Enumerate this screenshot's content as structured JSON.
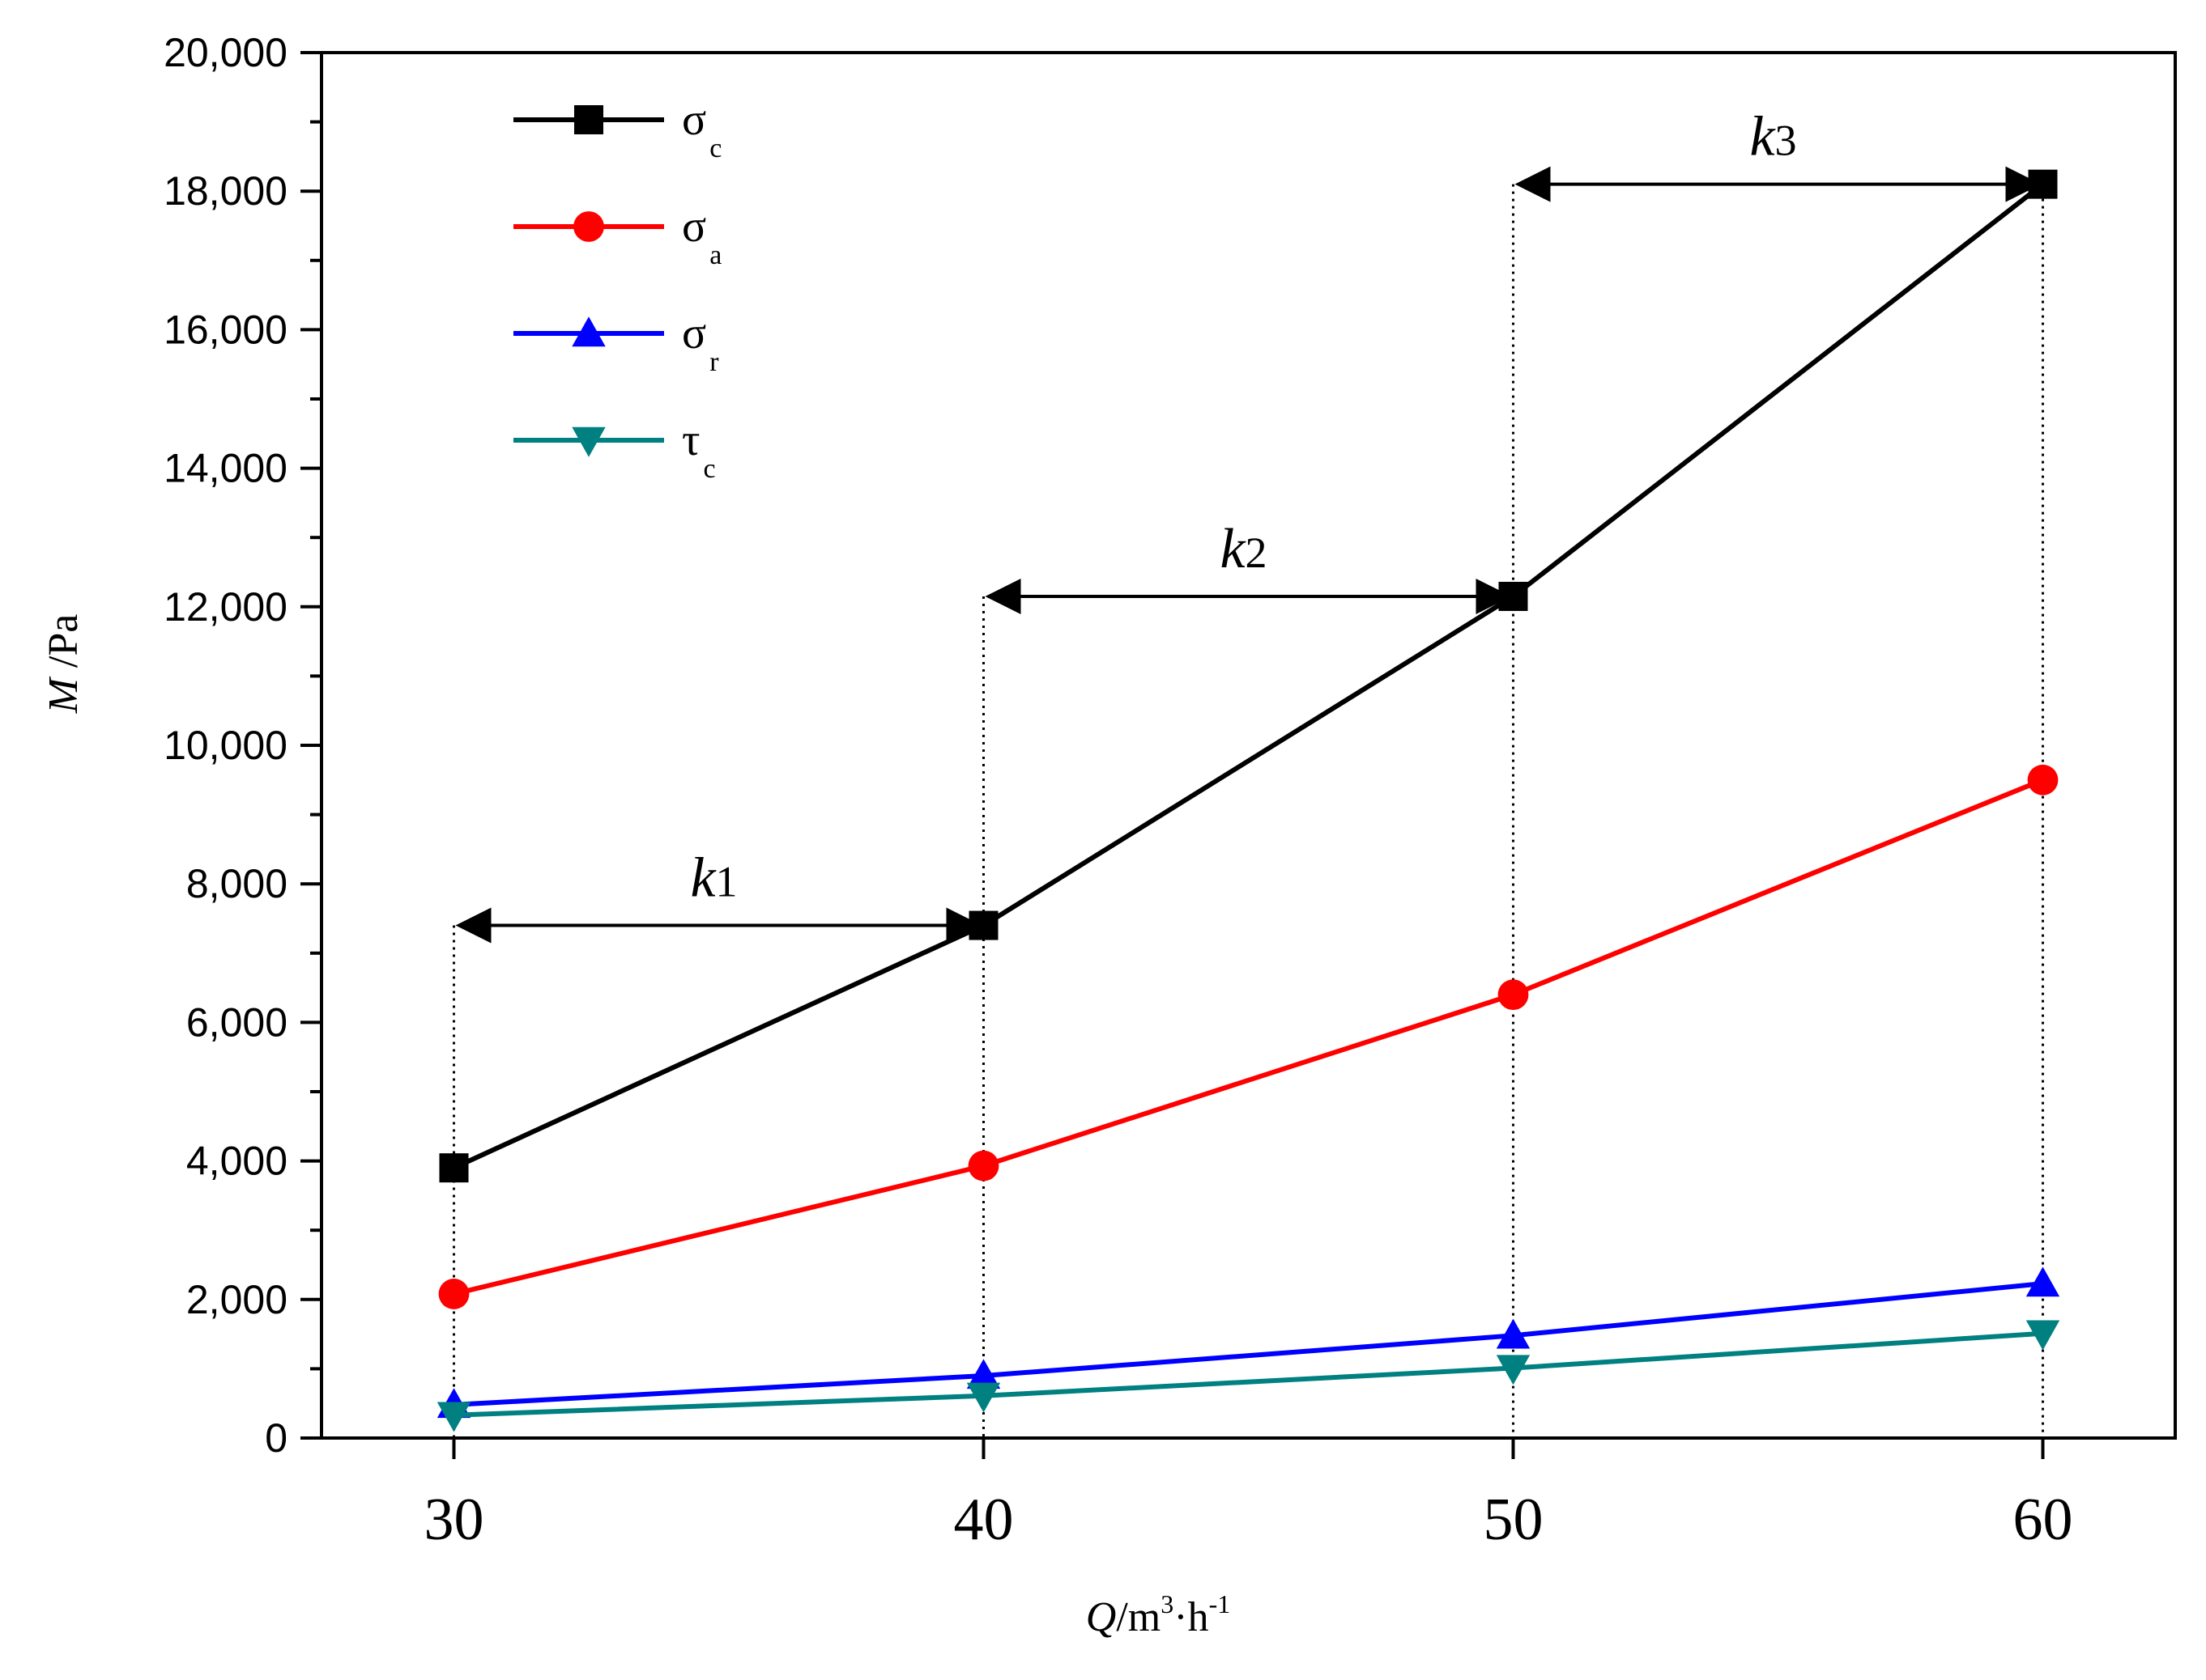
{
  "chart_data": {
    "type": "line",
    "title": "",
    "xlabel": {
      "var": "Q",
      "unit_base": "/m",
      "exp1": "3",
      "dot": "·h",
      "exp2": "-1"
    },
    "ylabel": {
      "var": "M",
      "unit": " /Pa"
    },
    "x": [
      30,
      40,
      50,
      60
    ],
    "xticks": [
      "30",
      "40",
      "50",
      "60"
    ],
    "xlim": [
      27.5,
      62.5
    ],
    "ylim": [
      0,
      20000
    ],
    "yticks": [
      0,
      2000,
      4000,
      6000,
      8000,
      10000,
      12000,
      14000,
      16000,
      18000,
      20000
    ],
    "ytick_labels": [
      "0",
      "2,000",
      "4,000",
      "6,000",
      "8,000",
      "10,000",
      "12,000",
      "14,000",
      "16,000",
      "18,000",
      "20,000"
    ],
    "legend_position": "top-left",
    "series": [
      {
        "name": "σc",
        "symbol": "σ",
        "sub": "c",
        "color": "#000000",
        "marker": "square",
        "values": [
          3900,
          7400,
          12150,
          18100
        ]
      },
      {
        "name": "σa",
        "symbol": "σ",
        "sub": "a",
        "color": "#ff0000",
        "marker": "circle",
        "values": [
          2080,
          3930,
          6400,
          9500
        ]
      },
      {
        "name": "σr",
        "symbol": "σ",
        "sub": "r",
        "color": "#0000ff",
        "marker": "triangle-up",
        "values": [
          480,
          900,
          1480,
          2230
        ]
      },
      {
        "name": "τc",
        "symbol": "τ",
        "sub": "c",
        "color": "#008080",
        "marker": "triangle-down",
        "values": [
          330,
          610,
          1010,
          1510
        ]
      }
    ],
    "annotations": [
      {
        "letter": "k",
        "sub": "1",
        "x_from": 30,
        "x_to": 40,
        "y": 7400
      },
      {
        "letter": "k",
        "sub": "2",
        "x_from": 40,
        "x_to": 50,
        "y": 12150
      },
      {
        "letter": "k",
        "sub": "3",
        "x_from": 50,
        "x_to": 60,
        "y": 18100
      }
    ]
  }
}
